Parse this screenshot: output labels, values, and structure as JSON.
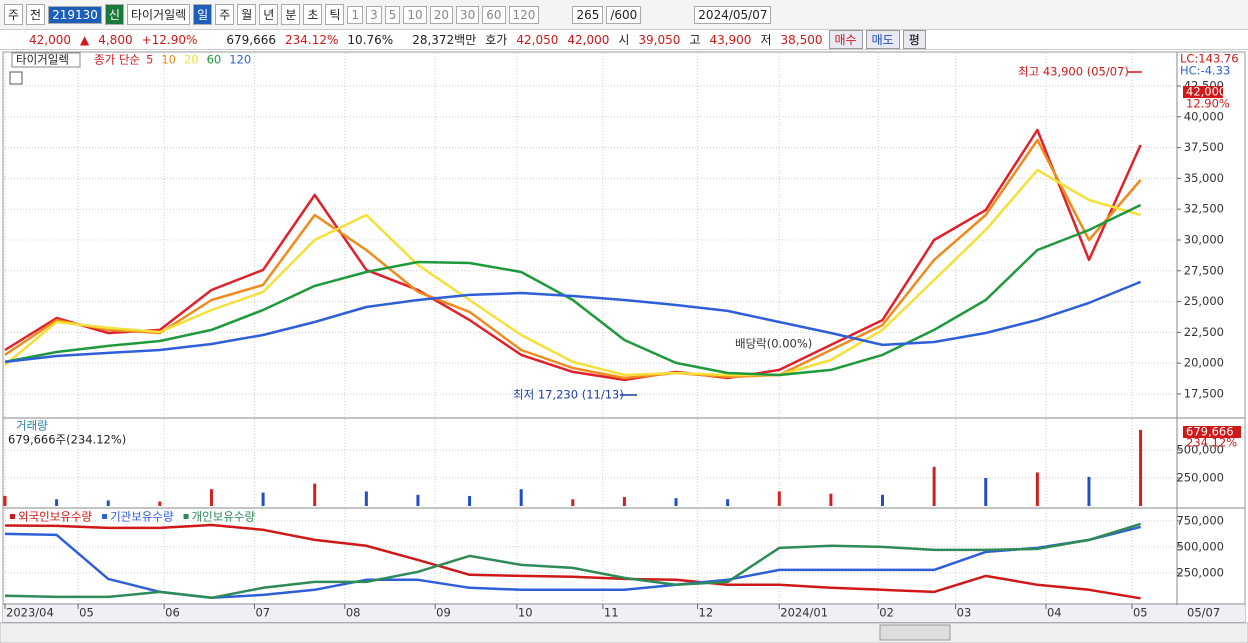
{
  "toolbar": {
    "period_type": "주",
    "scope": "전",
    "code": "219130",
    "badge": "신",
    "name": "타이거일렉",
    "periods": [
      "일",
      "주",
      "월",
      "년",
      "분",
      "초",
      "틱"
    ],
    "counts": [
      "1",
      "3",
      "5",
      "10",
      "20",
      "30",
      "60",
      "120"
    ],
    "visible": "265",
    "total": "/600",
    "date": "2024/05/07"
  },
  "quote": {
    "price": "42,000",
    "arrow": "▲",
    "change": "4,800",
    "change_pct": "+12.90%",
    "volume": "679,666",
    "volume_pct": "234.12%",
    "turnover": "10.76%",
    "amount": "28,372백만",
    "ask_label": "호가",
    "ask": "42,050",
    "bid": "42,000",
    "open_label": "시",
    "open": "39,050",
    "high_label": "고",
    "high": "43,900",
    "low_label": "저",
    "low": "38,500",
    "buy": "매수",
    "sell": "매도",
    "avg": "평"
  },
  "chart_data": [
    {
      "type": "line",
      "label": "타이거일렉",
      "legend_title": "종가 단순",
      "lc": "LC:143.76",
      "hc": "HC:-4.33",
      "last_price_label": "42,000",
      "last_change_label": "12.90%",
      "annotations": [
        "최고 43,900 (05/07)",
        "최저 17,230 (11/13)",
        "배당락(0.00%)"
      ],
      "grid": true,
      "xlim": [
        0,
        272
      ],
      "ylim": [
        15630,
        45180
      ],
      "yticks": [
        {
          "value": 17500,
          "label": "17,500"
        },
        {
          "value": 20000,
          "label": "20,000"
        },
        {
          "value": 22500,
          "label": "22,500"
        },
        {
          "value": 25000,
          "label": "25,000"
        },
        {
          "value": 27500,
          "label": "27,500"
        },
        {
          "value": 30000,
          "label": "30,000"
        },
        {
          "value": 32500,
          "label": "32,500"
        },
        {
          "value": 35000,
          "label": "35,000"
        },
        {
          "value": 37500,
          "label": "37,500"
        },
        {
          "value": 40000,
          "label": "40,000"
        },
        {
          "value": 42500,
          "label": "42,500"
        }
      ],
      "x": [
        0,
        12,
        24,
        36,
        48,
        60,
        72,
        84,
        96,
        108,
        120,
        132,
        144,
        156,
        168,
        180,
        192,
        204,
        216,
        228,
        240,
        252,
        264
      ],
      "series": [
        {
          "name": "5",
          "color": "#e0202a",
          "values": [
            21070,
            23670,
            22450,
            22700,
            25940,
            27570,
            33650,
            27570,
            25940,
            23500,
            20670,
            19290,
            18640,
            19290,
            18800,
            19450,
            21480,
            23500,
            30000,
            32430,
            38930,
            28380,
            37710
          ]
        },
        {
          "name": "10",
          "color": "#f08a1c",
          "values": [
            20670,
            23500,
            22700,
            22450,
            25130,
            26350,
            32030,
            29190,
            25790,
            24160,
            21070,
            19610,
            18800,
            19200,
            18880,
            19040,
            21070,
            23100,
            28380,
            32030,
            38120,
            30000,
            34870
          ]
        },
        {
          "name": "20",
          "color": "#f5e03a",
          "values": [
            19850,
            23340,
            22860,
            22530,
            24320,
            25780,
            30000,
            32030,
            27970,
            25130,
            22290,
            20100,
            19040,
            19200,
            19040,
            19040,
            20260,
            22700,
            26750,
            30810,
            35680,
            33250,
            32030
          ]
        },
        {
          "name": "60",
          "color": "#1e9a3c",
          "values": [
            20100,
            20910,
            21400,
            21800,
            22700,
            24320,
            26270,
            27400,
            28210,
            28130,
            27400,
            25130,
            21880,
            20020,
            19200,
            19040,
            19450,
            20670,
            22700,
            25130,
            29190,
            30810,
            32840
          ]
        },
        {
          "name": "120",
          "color": "#2f5fd8",
          "values": [
            20100,
            20580,
            20830,
            21070,
            21560,
            22290,
            23340,
            24560,
            25130,
            25540,
            25700,
            25450,
            25130,
            24720,
            24240,
            23340,
            22450,
            21480,
            21720,
            22450,
            23510,
            24890,
            26600
          ]
        }
      ]
    },
    {
      "type": "bar",
      "title": "거래량",
      "subtitle": "679,666주(234.12%)",
      "current_label": "679,666",
      "current_change": "234.12%",
      "grid": true,
      "xlim": [
        0,
        272
      ],
      "ylim": [
        0,
        776800
      ],
      "yticks": [
        {
          "value": 250000,
          "label": "250,000"
        },
        {
          "value": 500000,
          "label": "500,000"
        }
      ],
      "x": [
        0,
        12,
        24,
        36,
        48,
        60,
        72,
        84,
        96,
        108,
        120,
        132,
        144,
        156,
        168,
        180,
        192,
        204,
        216,
        228,
        240,
        252,
        264
      ],
      "values": [
        90000,
        60000,
        50000,
        40000,
        150000,
        120000,
        200000,
        130000,
        100000,
        90000,
        150000,
        60000,
        80000,
        70000,
        60000,
        130000,
        110000,
        100000,
        350000,
        250000,
        300000,
        260000,
        679666
      ],
      "colors": [
        "#d02020",
        "#2050c0",
        "#2050c0",
        "#d02020",
        "#d02020",
        "#2050c0",
        "#d02020",
        "#2050c0",
        "#2050c0",
        "#2050c0",
        "#2050c0",
        "#d02020",
        "#d02020",
        "#2050c0",
        "#2050c0",
        "#d02020",
        "#d02020",
        "#2050c0",
        "#d02020",
        "#2050c0",
        "#d02020",
        "#2050c0",
        "#d02020"
      ]
    },
    {
      "type": "line",
      "grid": true,
      "xlim": [
        0,
        272
      ],
      "ylim": [
        -40000,
        855000
      ],
      "yticks": [
        {
          "value": 250000,
          "label": "250,000"
        },
        {
          "value": 500000,
          "label": "500,000"
        },
        {
          "value": 750000,
          "label": "750,000"
        }
      ],
      "xticks": [
        {
          "value": 0,
          "label": "2023/04"
        },
        {
          "value": 17,
          "label": "05"
        },
        {
          "value": 37,
          "label": "06"
        },
        {
          "value": 58,
          "label": "07"
        },
        {
          "value": 79,
          "label": "08"
        },
        {
          "value": 100,
          "label": "09"
        },
        {
          "value": 119,
          "label": "10"
        },
        {
          "value": 139,
          "label": "11"
        },
        {
          "value": 161,
          "label": "12"
        },
        {
          "value": 180,
          "label": "2024/01"
        },
        {
          "value": 203,
          "label": "02"
        },
        {
          "value": 221,
          "label": "03"
        },
        {
          "value": 242,
          "label": "04"
        },
        {
          "value": 262,
          "label": "05"
        }
      ],
      "last_date": "05/07",
      "x": [
        0,
        12,
        24,
        36,
        48,
        60,
        72,
        84,
        96,
        108,
        120,
        132,
        144,
        156,
        168,
        180,
        192,
        204,
        216,
        228,
        240,
        252,
        264
      ],
      "series": [
        {
          "name": "외국인보유수량",
          "color": "#d01818",
          "values": [
            706000,
            702000,
            683000,
            683000,
            711000,
            664000,
            567000,
            510000,
            375000,
            231000,
            221000,
            212000,
            192000,
            183000,
            135000,
            135000,
            106000,
            87000,
            67000,
            221000,
            135000,
            87000,
            5000
          ]
        },
        {
          "name": "기관보유수량",
          "color": "#2f5fd8",
          "values": [
            625000,
            615000,
            192000,
            67000,
            10000,
            38000,
            87000,
            183000,
            183000,
            106000,
            87000,
            87000,
            87000,
            135000,
            183000,
            279000,
            279000,
            279000,
            279000,
            452000,
            490000,
            567000,
            692000
          ]
        },
        {
          "name": "개인보유수량",
          "color": "#2e8b57",
          "values": [
            29000,
            19000,
            19000,
            67000,
            10000,
            106000,
            163000,
            163000,
            260000,
            413000,
            327000,
            298000,
            202000,
            135000,
            163000,
            490000,
            510000,
            500000,
            471000,
            471000,
            481000,
            567000,
            721000
          ]
        }
      ]
    }
  ]
}
